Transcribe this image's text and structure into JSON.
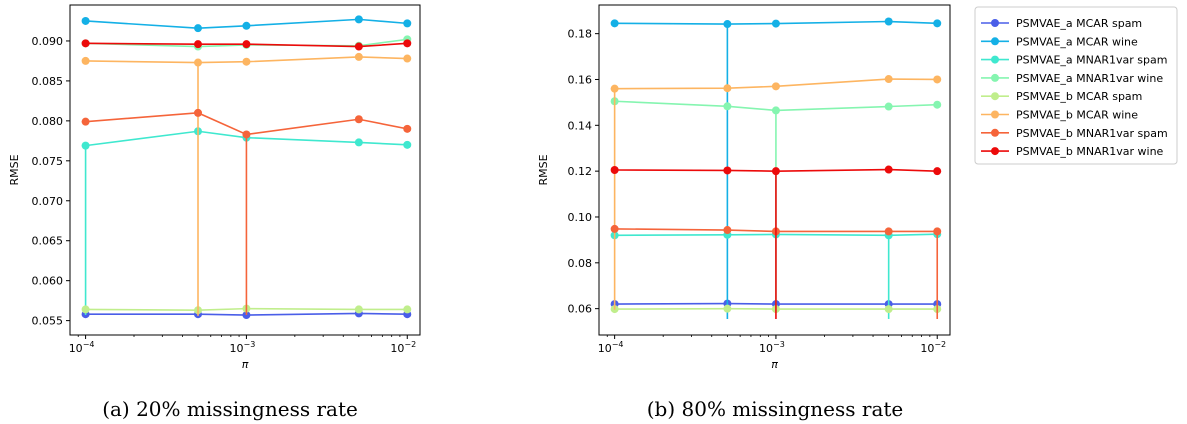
{
  "chart_data": [
    {
      "type": "line",
      "caption": "(a) 20% missingness rate",
      "xlabel": "π",
      "ylabel": "RMSE",
      "xscale": "log",
      "xlim": [
        8e-05,
        0.012
      ],
      "ylim": [
        0.0532,
        0.0945
      ],
      "xticks": [
        {
          "value": 0.0001,
          "base": "10",
          "exp": "−4"
        },
        {
          "value": 0.001,
          "base": "10",
          "exp": "−3"
        },
        {
          "value": 0.01,
          "base": "10",
          "exp": "−2"
        }
      ],
      "yticks": [
        "0.055",
        "0.060",
        "0.065",
        "0.070",
        "0.075",
        "0.080",
        "0.085",
        "0.090"
      ],
      "x": [
        0.0001,
        0.0005,
        0.001,
        0.005,
        0.01
      ],
      "series": [
        {
          "name": "PSMVAE_a MCAR spam",
          "color": "#4a5ee8",
          "values": [
            0.0558,
            0.0558,
            0.0557,
            0.0559,
            0.0558
          ],
          "err": [
            [
              0.0002,
              0.0003
            ],
            [
              0.0002,
              0.0003
            ],
            [
              0.0002,
              0.0003
            ],
            [
              0.0002,
              0.0003
            ],
            [
              0.0002,
              0.0003
            ]
          ]
        },
        {
          "name": "PSMVAE_a MCAR wine",
          "color": "#14b0e6",
          "values": [
            0.0925,
            0.0916,
            0.0919,
            0.0927,
            0.0922
          ],
          "err": [
            [
              0,
              0
            ],
            [
              0,
              0
            ],
            [
              0,
              0
            ],
            [
              0,
              0
            ],
            [
              0,
              0
            ]
          ]
        },
        {
          "name": "PSMVAE_a MNAR1var spam",
          "color": "#3fe8cf",
          "values": [
            0.0769,
            0.0787,
            0.0779,
            0.0773,
            0.077
          ],
          "err": [
            [
              0.0212,
              0
            ],
            [
              0,
              0
            ],
            [
              0,
              0
            ],
            [
              0,
              0
            ],
            [
              0,
              0
            ]
          ]
        },
        {
          "name": "PSMVAE_a MNAR1var wine",
          "color": "#85f5b0",
          "values": [
            0.0897,
            0.0893,
            0.0895,
            0.0894,
            0.0902
          ],
          "err": [
            [
              0,
              0
            ],
            [
              0,
              0
            ],
            [
              0,
              0
            ],
            [
              0,
              0
            ],
            [
              0,
              0
            ]
          ]
        },
        {
          "name": "PSMVAE_b MCAR spam",
          "color": "#c0ee8c",
          "values": [
            0.0564,
            0.0563,
            0.0565,
            0.0564,
            0.0564
          ],
          "err": [
            [
              0,
              0
            ],
            [
              0,
              0
            ],
            [
              0,
              0
            ],
            [
              0,
              0
            ],
            [
              0,
              0
            ]
          ]
        },
        {
          "name": "PSMVAE_b MCAR wine",
          "color": "#fdb561",
          "values": [
            0.0875,
            0.0873,
            0.0874,
            0.088,
            0.0878
          ],
          "err": [
            [
              0,
              0
            ],
            [
              0.0317,
              0
            ],
            [
              0,
              0
            ],
            [
              0,
              0
            ],
            [
              0,
              0
            ]
          ]
        },
        {
          "name": "PSMVAE_b MNAR1var spam",
          "color": "#f5643a",
          "values": [
            0.0799,
            0.081,
            0.0783,
            0.0802,
            0.079
          ],
          "err": [
            [
              0,
              0
            ],
            [
              0,
              0
            ],
            [
              0.0226,
              0
            ],
            [
              0,
              0
            ],
            [
              0,
              0
            ]
          ]
        },
        {
          "name": "PSMVAE_b MNAR1var wine",
          "color": "#ec0a0a",
          "values": [
            0.0897,
            0.0896,
            0.0896,
            0.0893,
            0.0897
          ],
          "err": [
            [
              0,
              0
            ],
            [
              0,
              0
            ],
            [
              0,
              0
            ],
            [
              0,
              0
            ],
            [
              0,
              0
            ]
          ]
        }
      ]
    },
    {
      "type": "line",
      "caption": "(b) 80% missingness rate",
      "xlabel": "π",
      "ylabel": "RMSE",
      "xscale": "log",
      "xlim": [
        8e-05,
        0.012
      ],
      "ylim": [
        0.0485,
        0.1925
      ],
      "xticks": [
        {
          "value": 0.0001,
          "base": "10",
          "exp": "−4"
        },
        {
          "value": 0.001,
          "base": "10",
          "exp": "−3"
        },
        {
          "value": 0.01,
          "base": "10",
          "exp": "−2"
        }
      ],
      "yticks": [
        "0.06",
        "0.08",
        "0.10",
        "0.12",
        "0.14",
        "0.16",
        "0.18"
      ],
      "x": [
        0.0001,
        0.0005,
        0.001,
        0.005,
        0.01
      ],
      "series": [
        {
          "name": "PSMVAE_a MCAR spam",
          "color": "#4a5ee8",
          "values": [
            0.062,
            0.0622,
            0.062,
            0.062,
            0.062
          ],
          "err": [
            [
              0,
              0
            ],
            [
              0,
              0
            ],
            [
              0,
              0
            ],
            [
              0,
              0
            ],
            [
              0,
              0
            ]
          ]
        },
        {
          "name": "PSMVAE_a MCAR wine",
          "color": "#14b0e6",
          "values": [
            0.1845,
            0.1842,
            0.1844,
            0.1853,
            0.1845
          ],
          "err": [
            [
              0,
              0
            ],
            [
              0.1287,
              0
            ],
            [
              0,
              0
            ],
            [
              0,
              0
            ],
            [
              0,
              0
            ]
          ]
        },
        {
          "name": "PSMVAE_a MNAR1var spam",
          "color": "#3fe8cf",
          "values": [
            0.092,
            0.0922,
            0.0924,
            0.092,
            0.0925
          ],
          "err": [
            [
              0,
              0
            ],
            [
              0,
              0
            ],
            [
              0,
              0
            ],
            [
              0.0365,
              0
            ],
            [
              0,
              0
            ]
          ]
        },
        {
          "name": "PSMVAE_a MNAR1var wine",
          "color": "#85f5b0",
          "values": [
            0.1505,
            0.1483,
            0.1465,
            0.1482,
            0.149
          ],
          "err": [
            [
              0,
              0
            ],
            [
              0,
              0
            ],
            [
              0.0868,
              0
            ],
            [
              0,
              0
            ],
            [
              0,
              0
            ]
          ]
        },
        {
          "name": "PSMVAE_b MCAR spam",
          "color": "#c0ee8c",
          "values": [
            0.0598,
            0.06,
            0.0598,
            0.0598,
            0.0598
          ],
          "err": [
            [
              0,
              0
            ],
            [
              0,
              0
            ],
            [
              0,
              0
            ],
            [
              0,
              0
            ],
            [
              0,
              0
            ]
          ]
        },
        {
          "name": "PSMVAE_b MCAR wine",
          "color": "#fdb561",
          "values": [
            0.156,
            0.1562,
            0.157,
            0.1602,
            0.16
          ],
          "err": [
            [
              0.0965,
              0
            ],
            [
              0,
              0
            ],
            [
              0,
              0
            ],
            [
              0,
              0
            ],
            [
              0,
              0
            ]
          ]
        },
        {
          "name": "PSMVAE_b MNAR1var spam",
          "color": "#f5643a",
          "values": [
            0.0948,
            0.0943,
            0.0937,
            0.0937,
            0.0937
          ],
          "err": [
            [
              0,
              0
            ],
            [
              0,
              0
            ],
            [
              0,
              0
            ],
            [
              0,
              0
            ],
            [
              0.0382,
              0
            ]
          ]
        },
        {
          "name": "PSMVAE_b MNAR1var wine",
          "color": "#ec0a0a",
          "values": [
            0.1205,
            0.1203,
            0.12,
            0.1207,
            0.12
          ],
          "err": [
            [
              0,
              0
            ],
            [
              0,
              0
            ],
            [
              0.0645,
              0
            ],
            [
              0,
              0
            ],
            [
              0,
              0
            ]
          ]
        }
      ]
    }
  ],
  "legend": {
    "placement": "right",
    "entries": [
      "PSMVAE_a MCAR spam",
      "PSMVAE_a MCAR wine",
      "PSMVAE_a MNAR1var spam",
      "PSMVAE_a MNAR1var wine",
      "PSMVAE_b MCAR spam",
      "PSMVAE_b MCAR wine",
      "PSMVAE_b MNAR1var spam",
      "PSMVAE_b MNAR1var wine"
    ],
    "colors": [
      "#4a5ee8",
      "#14b0e6",
      "#3fe8cf",
      "#85f5b0",
      "#c0ee8c",
      "#fdb561",
      "#f5643a",
      "#ec0a0a"
    ]
  }
}
